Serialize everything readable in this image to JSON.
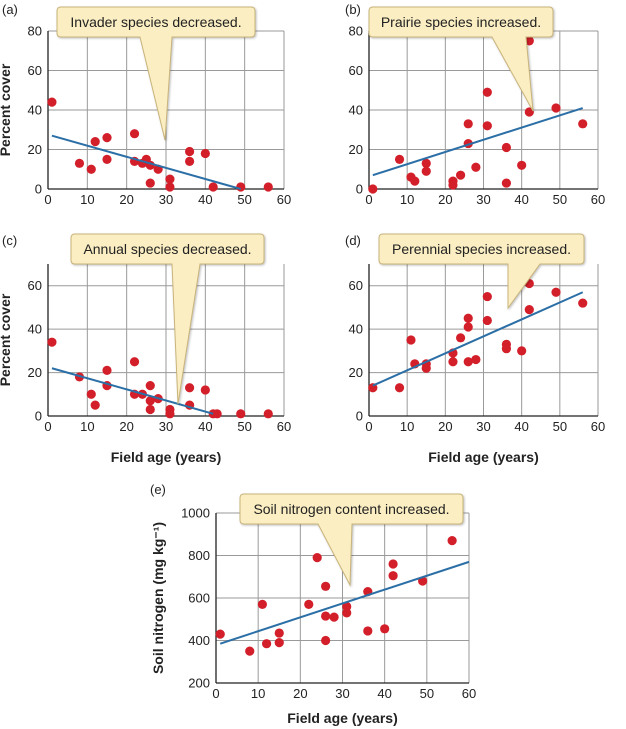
{
  "colors": {
    "point": "#d31f2a",
    "line": "#2b6fa6",
    "grid": "#9a9a9a",
    "axis": "#222222",
    "callout_fill": "#fbeec2",
    "callout_stroke": "#c9b47a"
  },
  "chart_data": [
    {
      "panel_label": "(a)",
      "type": "scatter",
      "callout": "Invader species decreased.",
      "ylabel": "Percent cover",
      "xlabel": "",
      "xlim": [
        0,
        60
      ],
      "ylim": [
        0,
        80
      ],
      "xticks": [
        "0",
        "10",
        "20",
        "30",
        "40",
        "50",
        "60"
      ],
      "yticks": [
        "0",
        "20",
        "40",
        "60",
        "80"
      ],
      "grid": true,
      "points": [
        [
          1,
          44
        ],
        [
          8,
          13
        ],
        [
          11,
          10
        ],
        [
          12,
          24
        ],
        [
          15,
          15
        ],
        [
          15,
          26
        ],
        [
          22,
          28
        ],
        [
          22,
          14
        ],
        [
          24,
          13
        ],
        [
          25,
          15
        ],
        [
          26,
          3
        ],
        [
          26,
          12
        ],
        [
          28,
          10
        ],
        [
          31,
          5
        ],
        [
          31,
          1
        ],
        [
          36,
          14
        ],
        [
          36,
          19
        ],
        [
          40,
          18
        ],
        [
          42,
          1
        ],
        [
          49,
          1
        ],
        [
          56,
          1
        ]
      ],
      "trend": [
        [
          1,
          27
        ],
        [
          49,
          0
        ]
      ]
    },
    {
      "panel_label": "(b)",
      "type": "scatter",
      "callout": "Prairie species increased.",
      "ylabel": "",
      "xlabel": "",
      "xlim": [
        0,
        60
      ],
      "ylim": [
        0,
        80
      ],
      "xticks": [
        "0",
        "10",
        "20",
        "30",
        "40",
        "50",
        "60"
      ],
      "yticks": [
        "0",
        "20",
        "40",
        "60",
        "80"
      ],
      "grid": true,
      "points": [
        [
          1,
          0
        ],
        [
          8,
          15
        ],
        [
          11,
          6
        ],
        [
          12,
          4
        ],
        [
          15,
          9
        ],
        [
          15,
          13
        ],
        [
          22,
          4
        ],
        [
          22,
          2
        ],
        [
          24,
          7
        ],
        [
          26,
          23
        ],
        [
          26,
          33
        ],
        [
          28,
          11
        ],
        [
          31,
          32
        ],
        [
          31,
          49
        ],
        [
          36,
          21
        ],
        [
          36,
          3
        ],
        [
          40,
          12
        ],
        [
          42,
          39
        ],
        [
          42,
          75
        ],
        [
          49,
          41
        ],
        [
          56,
          33
        ]
      ],
      "trend": [
        [
          1,
          7
        ],
        [
          56,
          41
        ]
      ]
    },
    {
      "panel_label": "(c)",
      "type": "scatter",
      "callout": "Annual species decreased.",
      "ylabel": "Percent cover",
      "xlabel": "Field age (years)",
      "xlim": [
        0,
        60
      ],
      "ylim": [
        0,
        70
      ],
      "xticks": [
        "0",
        "10",
        "20",
        "30",
        "40",
        "50",
        "60"
      ],
      "yticks": [
        "0",
        "20",
        "40",
        "60"
      ],
      "grid": true,
      "points": [
        [
          1,
          34
        ],
        [
          8,
          18
        ],
        [
          11,
          10
        ],
        [
          12,
          5
        ],
        [
          15,
          14
        ],
        [
          15,
          21
        ],
        [
          22,
          25
        ],
        [
          22,
          10
        ],
        [
          24,
          10
        ],
        [
          26,
          14
        ],
        [
          26,
          3
        ],
        [
          26,
          7
        ],
        [
          28,
          8
        ],
        [
          31,
          3
        ],
        [
          31,
          1
        ],
        [
          36,
          5
        ],
        [
          36,
          13
        ],
        [
          40,
          12
        ],
        [
          42,
          1
        ],
        [
          43,
          1
        ],
        [
          49,
          1
        ],
        [
          56,
          1
        ]
      ],
      "trend": [
        [
          1,
          22
        ],
        [
          42,
          1
        ]
      ]
    },
    {
      "panel_label": "(d)",
      "type": "scatter",
      "callout": "Perennial species increased.",
      "ylabel": "",
      "xlabel": "Field age (years)",
      "xlim": [
        0,
        60
      ],
      "ylim": [
        0,
        70
      ],
      "xticks": [
        "0",
        "10",
        "20",
        "30",
        "40",
        "50",
        "60"
      ],
      "yticks": [
        "0",
        "20",
        "40",
        "60"
      ],
      "grid": true,
      "points": [
        [
          1,
          13
        ],
        [
          8,
          13
        ],
        [
          11,
          35
        ],
        [
          12,
          24
        ],
        [
          15,
          24
        ],
        [
          15,
          22
        ],
        [
          22,
          29
        ],
        [
          22,
          25
        ],
        [
          24,
          36
        ],
        [
          26,
          41
        ],
        [
          26,
          45
        ],
        [
          26,
          25
        ],
        [
          28,
          26
        ],
        [
          31,
          55
        ],
        [
          31,
          44
        ],
        [
          36,
          33
        ],
        [
          36,
          31
        ],
        [
          40,
          30
        ],
        [
          42,
          61
        ],
        [
          42,
          49
        ],
        [
          49,
          57
        ],
        [
          56,
          52
        ]
      ],
      "trend": [
        [
          1,
          14
        ],
        [
          56,
          57
        ]
      ]
    },
    {
      "panel_label": "(e)",
      "type": "scatter",
      "callout": "Soil nitrogen content increased.",
      "ylabel": "Soil nitrogen (mg kg⁻¹)",
      "xlabel": "Field age (years)",
      "xlim": [
        0,
        60
      ],
      "ylim": [
        200,
        1000
      ],
      "xticks": [
        "0",
        "10",
        "20",
        "30",
        "40",
        "50",
        "60"
      ],
      "yticks": [
        "200",
        "400",
        "600",
        "800",
        "1000"
      ],
      "grid": true,
      "points": [
        [
          1,
          430
        ],
        [
          8,
          350
        ],
        [
          11,
          570
        ],
        [
          12,
          385
        ],
        [
          15,
          390
        ],
        [
          15,
          435
        ],
        [
          22,
          570
        ],
        [
          24,
          790
        ],
        [
          26,
          655
        ],
        [
          26,
          400
        ],
        [
          26,
          515
        ],
        [
          28,
          510
        ],
        [
          31,
          560
        ],
        [
          31,
          530
        ],
        [
          36,
          630
        ],
        [
          36,
          445
        ],
        [
          40,
          455
        ],
        [
          42,
          760
        ],
        [
          42,
          705
        ],
        [
          49,
          680
        ],
        [
          56,
          870
        ]
      ],
      "trend": [
        [
          1,
          385
        ],
        [
          60,
          770
        ]
      ]
    }
  ]
}
